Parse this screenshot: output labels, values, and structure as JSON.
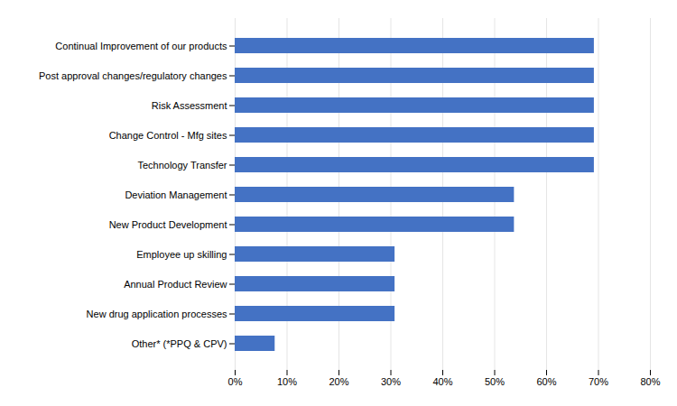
{
  "chart_data": {
    "type": "bar",
    "orientation": "horizontal",
    "categories": [
      "Other* (*PPQ & CPV)",
      "New drug application processes",
      "Annual Product Review",
      "Employee up skilling",
      "New Product Development",
      "Deviation Management",
      "Technology Transfer",
      "Change Control - Mfg sites",
      "Risk Assessment",
      "Post approval changes/regulatory changes",
      "Continual Improvement of our products"
    ],
    "values": [
      0.077,
      0.308,
      0.308,
      0.308,
      0.538,
      0.538,
      0.692,
      0.692,
      0.692,
      0.692,
      0.692
    ],
    "color": "#4472C4",
    "xlim": [
      0,
      0.8
    ],
    "xticks": [
      {
        "value": 0.0,
        "label": "0%"
      },
      {
        "value": 0.1,
        "label": "10%"
      },
      {
        "value": 0.2,
        "label": "20%"
      },
      {
        "value": 0.3,
        "label": "30%"
      },
      {
        "value": 0.4,
        "label": "40%"
      },
      {
        "value": 0.5,
        "label": "50%"
      },
      {
        "value": 0.6,
        "label": "60%"
      },
      {
        "value": 0.7,
        "label": "70%"
      },
      {
        "value": 0.8,
        "label": "80%"
      }
    ],
    "grid": true
  }
}
